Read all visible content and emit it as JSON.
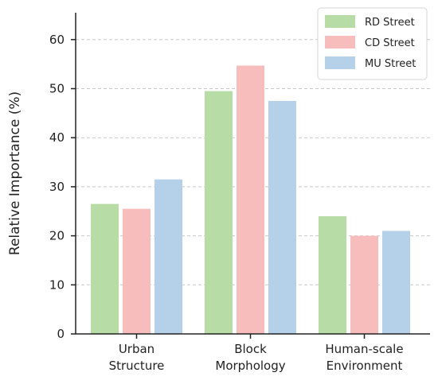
{
  "chart_data": {
    "type": "bar",
    "title": "",
    "xlabel": "",
    "ylabel": "Relative Importance (%)",
    "ylim": [
      0,
      65
    ],
    "yticks": [
      0,
      10,
      20,
      30,
      40,
      50,
      60
    ],
    "grid": "horizontal dashed",
    "legend_position": "top-right",
    "categories": [
      [
        "Urban",
        "Structure"
      ],
      [
        "Block",
        "Morphology"
      ],
      [
        "Human-scale",
        "Environment"
      ]
    ],
    "series": [
      {
        "name": "RD Street",
        "color": "#b8dca5",
        "values": [
          26.5,
          49.5,
          24.0
        ]
      },
      {
        "name": "CD Street",
        "color": "#f7bcbc",
        "values": [
          25.5,
          54.7,
          20.0
        ]
      },
      {
        "name": "MU Street",
        "color": "#b5d1ea",
        "values": [
          31.5,
          47.5,
          21.0
        ]
      }
    ]
  }
}
